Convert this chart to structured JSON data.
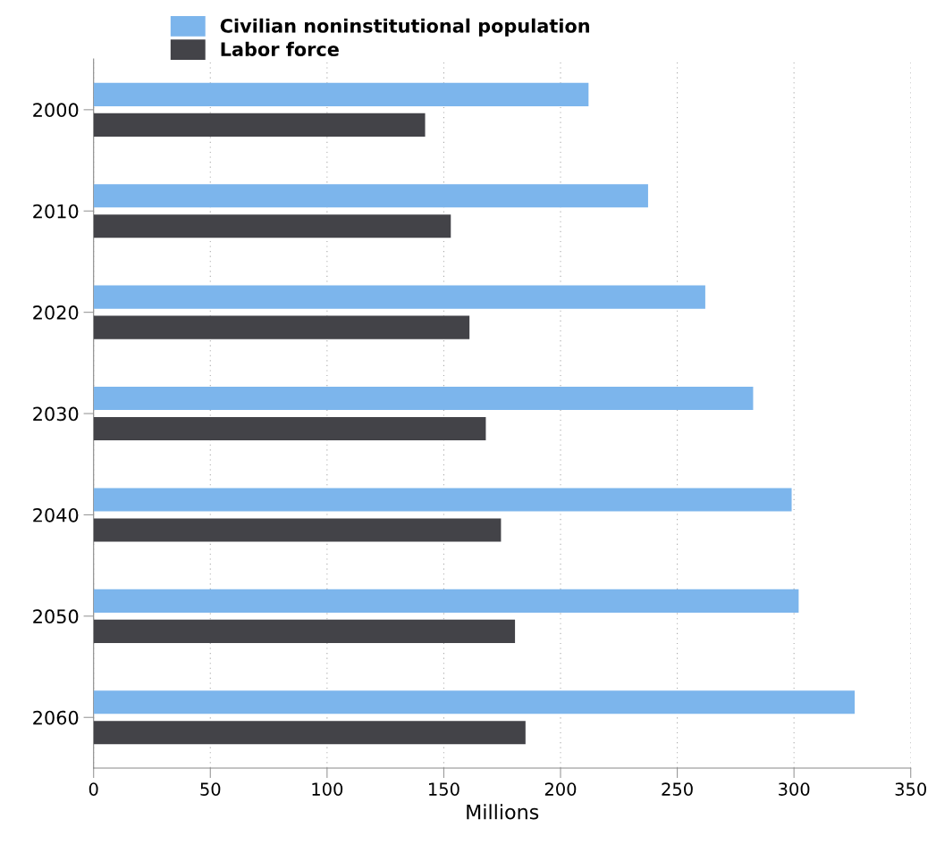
{
  "chart_data": {
    "type": "bar",
    "orientation": "horizontal",
    "xlabel": "Millions",
    "categories": [
      "2000",
      "2010",
      "2020",
      "2030",
      "2040",
      "2050",
      "2060"
    ],
    "series": [
      {
        "name": "Civilian noninstitutional population",
        "color": "#7cb5ec",
        "values": [
          212,
          237.5,
          262,
          282.5,
          299,
          302,
          326
        ]
      },
      {
        "name": "Labor force",
        "color": "#434348",
        "values": [
          142,
          153,
          161,
          168,
          174.5,
          180.5,
          185
        ]
      }
    ],
    "xlim": [
      0,
      350
    ],
    "xticks": [
      0,
      50,
      100,
      150,
      200,
      250,
      300,
      350
    ],
    "grid": "x",
    "legend": "top left"
  }
}
